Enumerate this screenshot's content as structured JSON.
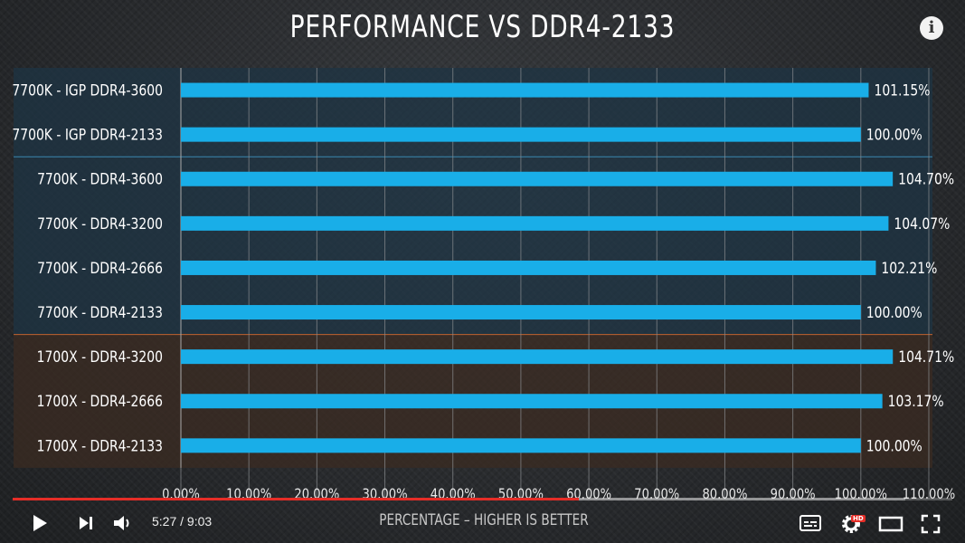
{
  "chart_data": {
    "type": "bar",
    "orientation": "horizontal",
    "title": "PERFORMANCE VS DDR4-2133",
    "xlabel": "PERCENTAGE – HIGHER IS BETTER",
    "ylabel": "",
    "xlim": [
      0,
      110
    ],
    "x_ticks": [
      "0.00%",
      "10.00%",
      "20.00%",
      "30.00%",
      "40.00%",
      "50.00%",
      "60.00%",
      "70.00%",
      "80.00%",
      "90.00%",
      "100.00%",
      "110.00%"
    ],
    "categories": [
      "7700K - IGP DDR4-3600",
      "7700K - IGP DDR4-2133",
      "7700K - DDR4-3600",
      "7700K - DDR4-3200",
      "7700K - DDR4-2666",
      "7700K - DDR4-2133",
      "1700X - DDR4-3200",
      "1700X - DDR4-2666",
      "1700X - DDR4-2133"
    ],
    "values": [
      101.15,
      100.0,
      104.7,
      104.07,
      102.21,
      100.0,
      104.71,
      103.17,
      100.0
    ],
    "value_labels": [
      "101.15%",
      "100.00%",
      "104.70%",
      "104.07%",
      "102.21%",
      "100.00%",
      "104.71%",
      "103.17%",
      "100.00%"
    ],
    "groups": [
      {
        "rows": [
          0,
          1
        ],
        "color": "#1d3444"
      },
      {
        "rows": [
          2,
          3,
          4,
          5
        ],
        "color": "#1d3444"
      },
      {
        "rows": [
          6,
          7,
          8
        ],
        "color": "#3b2b22"
      }
    ],
    "bar_color": "#19aee8",
    "grid": true
  },
  "player": {
    "time": "5:27 / 9:03",
    "progress_fraction": 0.6022,
    "buffered_fraction": 0.95,
    "hd_badge": "HD",
    "info_icon": "i"
  },
  "colors": {
    "progress_played": "#e52d27",
    "group_separator_blue": "#3a88b0",
    "group_separator_orange": "#c0622e"
  }
}
